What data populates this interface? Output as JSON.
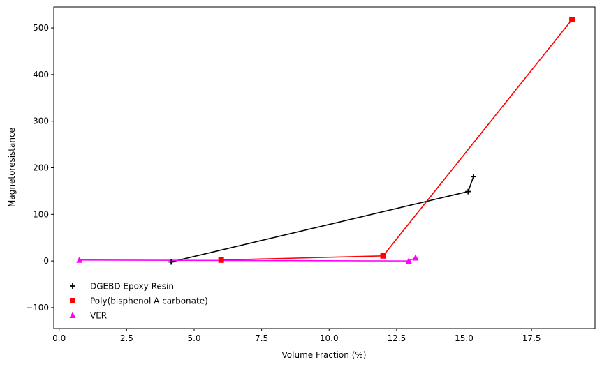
{
  "chart_data": {
    "type": "line",
    "xlabel": "Volume Fraction (%)",
    "ylabel": "Magnetoresistance",
    "xlim": [
      -0.2,
      19.85
    ],
    "ylim": [
      -145,
      545
    ],
    "xticks": [
      0.0,
      2.5,
      5.0,
      7.5,
      10.0,
      12.5,
      15.0,
      17.5
    ],
    "xtick_labels": [
      "0.0",
      "2.5",
      "5.0",
      "7.5",
      "10.0",
      "12.5",
      "15.0",
      "17.5"
    ],
    "yticks": [
      -100,
      0,
      100,
      200,
      300,
      400,
      500
    ],
    "ytick_labels": [
      "−100",
      "0",
      "100",
      "200",
      "300",
      "400",
      "500"
    ],
    "grid": false,
    "legend_position": "lower-left",
    "series": [
      {
        "name": "DGEBD Epoxy Resin",
        "color": "#000000",
        "marker": "plus",
        "points": [
          [
            4.15,
            -2
          ],
          [
            15.15,
            149
          ],
          [
            15.35,
            181
          ]
        ]
      },
      {
        "name": "Poly(bisphenol A carbonate)",
        "color": "#ff0000",
        "marker": "square",
        "points": [
          [
            6.0,
            2
          ],
          [
            12.0,
            11
          ],
          [
            19.0,
            518
          ]
        ]
      },
      {
        "name": "VER",
        "color": "#ff00ff",
        "marker": "triangle",
        "points": [
          [
            0.75,
            2
          ],
          [
            12.95,
            0
          ],
          [
            13.2,
            7
          ]
        ]
      }
    ]
  }
}
